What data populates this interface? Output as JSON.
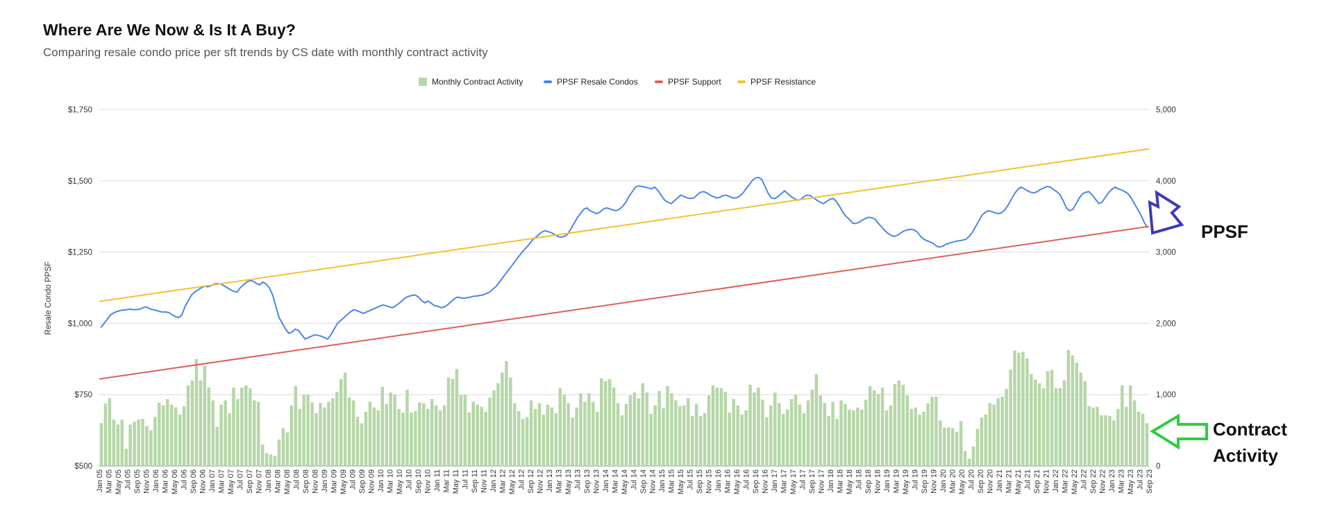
{
  "chart_data": {
    "type": "bar",
    "title": "Where Are We Now & Is It A Buy?",
    "subtitle": "Comparing resale condo price per sft trends by CS date with monthly contract activity",
    "ylabel": "Resale Condo PPSF",
    "left_axis": {
      "ticks": [
        "$500",
        "$750",
        "$1,000",
        "$1,250",
        "$1,500",
        "$1,750"
      ],
      "ylim": [
        500,
        1750
      ]
    },
    "right_axis": {
      "ticks": [
        "0",
        "1,000",
        "2,000",
        "3,000",
        "4,000",
        "5,000"
      ],
      "ylim": [
        0,
        5000
      ]
    },
    "grid": true,
    "legend_position": "top",
    "x_start": "Jan 05",
    "x_end": "Sep 23",
    "x_labels": [
      "Jan 05",
      "Mar 05",
      "May 05",
      "Jul 05",
      "Sep 05",
      "Nov 05",
      "Jan 06",
      "Mar 06",
      "May 06",
      "Jul 06",
      "Sep 06",
      "Nov 06",
      "Jan 07",
      "Mar 07",
      "May 07",
      "Jul 07",
      "Sep 07",
      "Nov 07",
      "Jan 08",
      "Mar 08",
      "May 08",
      "Jul 08",
      "Sep 08",
      "Nov 08",
      "Jan 09",
      "Mar 09",
      "May 09",
      "Jul 09",
      "Sep 09",
      "Nov 09",
      "Jan 10",
      "Mar 10",
      "May 10",
      "Jul 10",
      "Sep 10",
      "Nov 10",
      "Jan 11",
      "Mar 11",
      "May 11",
      "Jul 11",
      "Sep 11",
      "Nov 11",
      "Jan 12",
      "Mar 12",
      "May 12",
      "Jul 12",
      "Sep 12",
      "Nov 12",
      "Jan 13",
      "Mar 13",
      "May 13",
      "Jul 13",
      "Sep 13",
      "Nov 13",
      "Jan 14",
      "Mar 14",
      "May 14",
      "Jul 14",
      "Sep 14",
      "Nov 14",
      "Jan 15",
      "Mar 15",
      "May 15",
      "Jul 15",
      "Sep 15",
      "Nov 15",
      "Jan 16",
      "Mar 16",
      "May 16",
      "Jul 16",
      "Sep 16",
      "Nov 16",
      "Jan 17",
      "Mar 17",
      "May 17",
      "Jul 17",
      "Sep 17",
      "Nov 17",
      "Jan 18",
      "Mar 18",
      "May 18",
      "Jul 18",
      "Sep 18",
      "Nov 18",
      "Jan 19",
      "Mar 19",
      "May 19",
      "Jul 19",
      "Sep 19",
      "Nov 19",
      "Jan 20",
      "Mar 20",
      "May 20",
      "Jul 20",
      "Sep 20",
      "Nov 20",
      "Jan 21",
      "Mar 21",
      "May 21",
      "Jul 21",
      "Sep 21",
      "Nov 21",
      "Jan 22",
      "Mar 22",
      "May 22",
      "Jul 22",
      "Sep 22",
      "Nov 22",
      "Jan 23",
      "Mar 23",
      "May 23",
      "Jul 23",
      "Sep 23"
    ],
    "series": [
      {
        "name": "Monthly Contract Activity",
        "type": "bar",
        "axis": "right",
        "color": "#b6d7a8",
        "values": [
          600,
          875,
          950,
          650,
          580,
          650,
          240,
          580,
          620,
          650,
          660,
          560,
          500,
          690,
          890,
          850,
          940,
          860,
          820,
          720,
          840,
          1130,
          1200,
          1500,
          1200,
          1400,
          1100,
          920,
          550,
          860,
          920,
          740,
          1100,
          940,
          1100,
          1130,
          1090,
          920,
          900,
          300,
          180,
          160,
          140,
          370,
          530,
          470,
          850,
          1120,
          800,
          1000,
          1000,
          890,
          740,
          880,
          820,
          900,
          950,
          1040,
          1220,
          1310,
          960,
          920,
          690,
          600,
          760,
          900,
          820,
          780,
          1110,
          870,
          1030,
          1000,
          800,
          750,
          1070,
          750,
          770,
          890,
          880,
          800,
          940,
          850,
          780,
          850,
          1240,
          1220,
          1360,
          1000,
          1000,
          750,
          900,
          860,
          830,
          760,
          960,
          1060,
          1160,
          1310,
          1470,
          1240,
          880,
          770,
          660,
          680,
          920,
          800,
          880,
          720,
          860,
          820,
          740,
          1090,
          1000,
          880,
          680,
          820,
          1020,
          900,
          1020,
          900,
          760,
          1230,
          1190,
          1220,
          1100,
          880,
          710,
          870,
          990,
          1030,
          950,
          1160,
          1030,
          730,
          850,
          1050,
          810,
          1120,
          1020,
          920,
          840,
          850,
          950,
          700,
          870,
          700,
          740,
          990,
          1130,
          1100,
          1090,
          1040,
          750,
          940,
          850,
          720,
          780,
          1140,
          1030,
          1100,
          930,
          680,
          850,
          1030,
          880,
          730,
          790,
          940,
          1000,
          860,
          740,
          920,
          1070,
          1290,
          990,
          880,
          700,
          900,
          660,
          920,
          870,
          790,
          780,
          820,
          790,
          930,
          1120,
          1060,
          1010,
          1100,
          780,
          850,
          1150,
          1200,
          1140,
          990,
          800,
          820,
          720,
          760,
          880,
          970,
          970,
          640,
          540,
          540,
          530,
          480,
          630,
          210,
          100,
          270,
          520,
          680,
          720,
          880,
          860,
          950,
          970,
          1080,
          1350,
          1620,
          1590,
          1600,
          1510,
          1290,
          1210,
          1160,
          1090,
          1330,
          1350,
          1090,
          1090,
          1200,
          1630,
          1550,
          1450,
          1310,
          1190,
          840,
          820,
          830,
          710,
          710,
          700,
          640,
          800,
          1130,
          830,
          1130,
          920,
          760,
          730,
          600
        ]
      },
      {
        "name": "PPSF Resale Condos",
        "type": "line",
        "axis": "left",
        "color": "#4a86e8",
        "values": [
          985,
          1000,
          1015,
          1030,
          1037,
          1042,
          1045,
          1047,
          1048,
          1050,
          1048,
          1048,
          1050,
          1055,
          1058,
          1052,
          1048,
          1046,
          1042,
          1040,
          1040,
          1038,
          1030,
          1024,
          1020,
          1030,
          1060,
          1080,
          1100,
          1110,
          1118,
          1125,
          1130,
          1128,
          1132,
          1138,
          1140,
          1138,
          1132,
          1125,
          1118,
          1112,
          1110,
          1125,
          1135,
          1145,
          1150,
          1148,
          1140,
          1135,
          1145,
          1138,
          1125,
          1100,
          1060,
          1020,
          1000,
          980,
          965,
          970,
          980,
          975,
          960,
          945,
          950,
          955,
          960,
          958,
          955,
          950,
          945,
          960,
          980,
          1000,
          1010,
          1020,
          1030,
          1040,
          1048,
          1045,
          1040,
          1035,
          1040,
          1045,
          1050,
          1055,
          1060,
          1065,
          1062,
          1058,
          1055,
          1062,
          1070,
          1080,
          1090,
          1095,
          1098,
          1100,
          1092,
          1080,
          1072,
          1078,
          1070,
          1062,
          1060,
          1055,
          1058,
          1065,
          1075,
          1085,
          1092,
          1090,
          1088,
          1090,
          1092,
          1095,
          1096,
          1098,
          1100,
          1105,
          1110,
          1120,
          1130,
          1145,
          1160,
          1175,
          1190,
          1205,
          1220,
          1235,
          1250,
          1262,
          1275,
          1290,
          1300,
          1310,
          1320,
          1325,
          1322,
          1318,
          1312,
          1305,
          1302,
          1305,
          1312,
          1330,
          1350,
          1370,
          1385,
          1400,
          1405,
          1395,
          1390,
          1385,
          1390,
          1400,
          1405,
          1402,
          1398,
          1395,
          1400,
          1410,
          1425,
          1445,
          1462,
          1478,
          1482,
          1480,
          1478,
          1475,
          1472,
          1478,
          1465,
          1448,
          1432,
          1425,
          1420,
          1430,
          1440,
          1450,
          1445,
          1440,
          1438,
          1440,
          1450,
          1460,
          1462,
          1458,
          1450,
          1445,
          1440,
          1442,
          1448,
          1450,
          1445,
          1440,
          1440,
          1445,
          1455,
          1470,
          1485,
          1500,
          1510,
          1512,
          1505,
          1480,
          1455,
          1440,
          1438,
          1445,
          1455,
          1465,
          1455,
          1445,
          1438,
          1432,
          1435,
          1445,
          1450,
          1448,
          1440,
          1432,
          1425,
          1420,
          1428,
          1435,
          1438,
          1428,
          1410,
          1390,
          1375,
          1365,
          1352,
          1350,
          1355,
          1362,
          1368,
          1372,
          1370,
          1365,
          1350,
          1338,
          1325,
          1315,
          1308,
          1305,
          1310,
          1318,
          1325,
          1328,
          1330,
          1328,
          1320,
          1305,
          1295,
          1290,
          1285,
          1280,
          1270,
          1268,
          1272,
          1278,
          1282,
          1285,
          1288,
          1290,
          1292,
          1295,
          1305,
          1320,
          1340,
          1360,
          1380,
          1390,
          1395,
          1392,
          1388,
          1385,
          1388,
          1398,
          1415,
          1435,
          1455,
          1470,
          1478,
          1472,
          1465,
          1460,
          1458,
          1462,
          1470,
          1475,
          1480,
          1478,
          1470,
          1462,
          1452,
          1430,
          1405,
          1395,
          1400,
          1420,
          1440,
          1455,
          1460,
          1462,
          1450,
          1435,
          1420,
          1425,
          1442,
          1458,
          1470,
          1478,
          1472,
          1468,
          1462,
          1455,
          1440,
          1420,
          1400,
          1380,
          1355,
          1335
        ]
      },
      {
        "name": "PPSF Support",
        "type": "line",
        "axis": "left",
        "color": "#e06055",
        "start": 805,
        "end": 1340
      },
      {
        "name": "PPSF Resistance",
        "type": "line",
        "axis": "left",
        "color": "#f1c232",
        "start": 1077,
        "end": 1612
      }
    ],
    "annotations": [
      {
        "name": "ppsf-annotation",
        "text": "PPSF",
        "arrow_color": "#3c3cb4"
      },
      {
        "name": "contract-activity-annotation",
        "text": "Contract Activity",
        "line1": "Contract",
        "line2": "Activity",
        "arrow_color": "#2ecc40"
      }
    ]
  }
}
